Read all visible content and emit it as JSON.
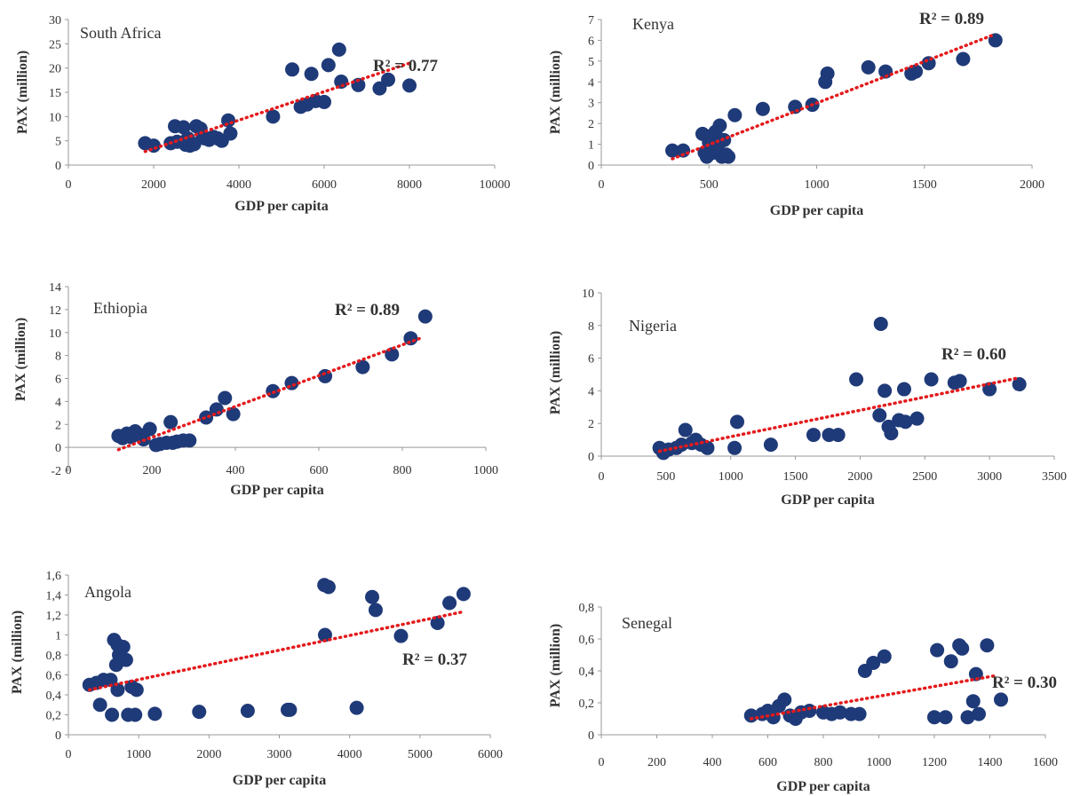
{
  "chart_data": [
    {
      "type": "scatter",
      "country": "South Africa",
      "r2": "R² = 0.77",
      "xlabel": "GDP per capita",
      "ylabel": "PAX (million)",
      "xlim": [
        0,
        10000
      ],
      "ylim": [
        0,
        30
      ],
      "xticks": [
        "0",
        "2000",
        "4000",
        "6000",
        "8000",
        "10000"
      ],
      "yticks": [
        "0",
        "5",
        "10",
        "15",
        "20",
        "25",
        "30"
      ],
      "trend": [
        [
          1800,
          2.8
        ],
        [
          8000,
          21
        ]
      ],
      "points": [
        [
          1800,
          4.5
        ],
        [
          2000,
          4
        ],
        [
          2400,
          4.5
        ],
        [
          2500,
          8
        ],
        [
          2550,
          4.8
        ],
        [
          2700,
          7.8
        ],
        [
          2750,
          4.2
        ],
        [
          2800,
          5.5
        ],
        [
          2850,
          4
        ],
        [
          2950,
          4.3
        ],
        [
          3000,
          8
        ],
        [
          3100,
          7.5
        ],
        [
          3150,
          6
        ],
        [
          3200,
          5.5
        ],
        [
          3300,
          5.2
        ],
        [
          3400,
          5.8
        ],
        [
          3500,
          5.5
        ],
        [
          3600,
          5
        ],
        [
          3750,
          9.2
        ],
        [
          3800,
          6.5
        ],
        [
          4800,
          10
        ],
        [
          5250,
          19.7
        ],
        [
          5450,
          12
        ],
        [
          5600,
          12.5
        ],
        [
          5700,
          18.8
        ],
        [
          5800,
          13.2
        ],
        [
          6000,
          13
        ],
        [
          6100,
          20.6
        ],
        [
          6350,
          23.8
        ],
        [
          6400,
          17.2
        ],
        [
          6800,
          16.5
        ],
        [
          7300,
          15.8
        ],
        [
          7500,
          17.6
        ],
        [
          8000,
          16.4
        ]
      ]
    },
    {
      "type": "scatter",
      "country": "Kenya",
      "r2": "R² = 0.89",
      "xlabel": "GDP per capita",
      "ylabel": "PAX (million)",
      "xlim": [
        0,
        2000
      ],
      "ylim": [
        0,
        7
      ],
      "xticks": [
        "0",
        "500",
        "1000",
        "1500",
        "2000"
      ],
      "yticks": [
        "0",
        "1",
        "2",
        "3",
        "4",
        "5",
        "6",
        "7"
      ],
      "trend": [
        [
          330,
          0.3
        ],
        [
          1830,
          6.3
        ]
      ],
      "points": [
        [
          330,
          0.7
        ],
        [
          380,
          0.7
        ],
        [
          470,
          1.5
        ],
        [
          480,
          0.6
        ],
        [
          490,
          0.4
        ],
        [
          500,
          1.1
        ],
        [
          510,
          1.4
        ],
        [
          520,
          0.6
        ],
        [
          530,
          1.6
        ],
        [
          540,
          0.8
        ],
        [
          550,
          1.9
        ],
        [
          560,
          0.4
        ],
        [
          570,
          1.2
        ],
        [
          580,
          0.5
        ],
        [
          590,
          0.4
        ],
        [
          620,
          2.4
        ],
        [
          750,
          2.7
        ],
        [
          900,
          2.8
        ],
        [
          980,
          2.9
        ],
        [
          1040,
          4
        ],
        [
          1050,
          4.4
        ],
        [
          1240,
          4.7
        ],
        [
          1320,
          4.5
        ],
        [
          1440,
          4.4
        ],
        [
          1460,
          4.5
        ],
        [
          1520,
          4.9
        ],
        [
          1680,
          5.1
        ],
        [
          1830,
          6
        ]
      ]
    },
    {
      "type": "scatter",
      "country": "Ethiopia",
      "r2": "R² = 0.89",
      "xlabel": "GDP per capita",
      "ylabel": "PAX (million)",
      "xlim": [
        0,
        1000
      ],
      "ylim": [
        -2,
        14
      ],
      "xticks": [
        "0",
        "200",
        "400",
        "600",
        "800",
        "1000"
      ],
      "yticks": [
        "-2",
        "0",
        "2",
        "4",
        "6",
        "8",
        "10",
        "12",
        "14"
      ],
      "trend": [
        [
          120,
          -0.2
        ],
        [
          850,
          9.6
        ]
      ],
      "points": [
        [
          120,
          1
        ],
        [
          130,
          0.8
        ],
        [
          140,
          1.2
        ],
        [
          150,
          0.9
        ],
        [
          160,
          1.4
        ],
        [
          170,
          1.1
        ],
        [
          180,
          0.7
        ],
        [
          195,
          1.6
        ],
        [
          210,
          0.2
        ],
        [
          220,
          0.3
        ],
        [
          235,
          0.4
        ],
        [
          245,
          2.2
        ],
        [
          250,
          0.4
        ],
        [
          260,
          0.5
        ],
        [
          275,
          0.6
        ],
        [
          290,
          0.6
        ],
        [
          330,
          2.6
        ],
        [
          355,
          3.3
        ],
        [
          375,
          4.3
        ],
        [
          395,
          2.9
        ],
        [
          490,
          4.9
        ],
        [
          535,
          5.6
        ],
        [
          615,
          6.2
        ],
        [
          705,
          7
        ],
        [
          775,
          8.1
        ],
        [
          820,
          9.5
        ],
        [
          855,
          11.4
        ]
      ]
    },
    {
      "type": "scatter",
      "country": "Nigeria",
      "r2": "R² = 0.60",
      "xlabel": "GDP per capita",
      "ylabel": "PAX (million)",
      "xlim": [
        0,
        3500
      ],
      "ylim": [
        0,
        10
      ],
      "xticks": [
        "0",
        "500",
        "1000",
        "1500",
        "2000",
        "2500",
        "3000",
        "3500"
      ],
      "yticks": [
        "0",
        "2",
        "4",
        "6",
        "8",
        "10"
      ],
      "trend": [
        [
          450,
          0.3
        ],
        [
          3230,
          4.8
        ]
      ],
      "points": [
        [
          450,
          0.5
        ],
        [
          480,
          0.2
        ],
        [
          520,
          0.4
        ],
        [
          580,
          0.5
        ],
        [
          620,
          0.7
        ],
        [
          650,
          1.6
        ],
        [
          700,
          0.8
        ],
        [
          730,
          1
        ],
        [
          770,
          0.7
        ],
        [
          820,
          0.5
        ],
        [
          1030,
          0.5
        ],
        [
          1050,
          2.1
        ],
        [
          1310,
          0.7
        ],
        [
          1640,
          1.3
        ],
        [
          1760,
          1.3
        ],
        [
          1830,
          1.3
        ],
        [
          1970,
          4.7
        ],
        [
          2150,
          2.5
        ],
        [
          2160,
          8.1
        ],
        [
          2190,
          4
        ],
        [
          2220,
          1.8
        ],
        [
          2240,
          1.4
        ],
        [
          2300,
          2.2
        ],
        [
          2340,
          4.1
        ],
        [
          2350,
          2.1
        ],
        [
          2440,
          2.3
        ],
        [
          2550,
          4.7
        ],
        [
          2730,
          4.5
        ],
        [
          2770,
          4.6
        ],
        [
          3000,
          4.1
        ],
        [
          3230,
          4.4
        ]
      ]
    },
    {
      "type": "scatter",
      "country": "Angola",
      "r2": "R² = 0.37",
      "xlabel": "GDP per capita",
      "ylabel": "PAX (million)",
      "xlim": [
        0,
        6000
      ],
      "ylim": [
        0,
        1.6
      ],
      "xticks": [
        "0",
        "1000",
        "2000",
        "3000",
        "4000",
        "5000",
        "6000"
      ],
      "yticks": [
        "0",
        "0,2",
        "0,4",
        "0,6",
        "0,8",
        "1",
        "1,2",
        "1,4",
        "1,6"
      ],
      "trend": [
        [
          300,
          0.45
        ],
        [
          5600,
          1.23
        ]
      ],
      "points": [
        [
          300,
          0.5
        ],
        [
          400,
          0.52
        ],
        [
          450,
          0.3
        ],
        [
          500,
          0.55
        ],
        [
          600,
          0.55
        ],
        [
          620,
          0.2
        ],
        [
          650,
          0.95
        ],
        [
          680,
          0.7
        ],
        [
          700,
          0.45
        ],
        [
          700,
          0.9
        ],
        [
          720,
          0.8
        ],
        [
          780,
          0.88
        ],
        [
          820,
          0.75
        ],
        [
          850,
          0.2
        ],
        [
          900,
          0.48
        ],
        [
          950,
          0.2
        ],
        [
          970,
          0.45
        ],
        [
          1230,
          0.21
        ],
        [
          1860,
          0.23
        ],
        [
          2550,
          0.24
        ],
        [
          3120,
          0.25
        ],
        [
          3150,
          0.25
        ],
        [
          3640,
          1.5
        ],
        [
          3650,
          1
        ],
        [
          3700,
          1.48
        ],
        [
          4100,
          0.27
        ],
        [
          4320,
          1.38
        ],
        [
          4370,
          1.25
        ],
        [
          4730,
          0.99
        ],
        [
          5250,
          1.12
        ],
        [
          5420,
          1.32
        ],
        [
          5620,
          1.41
        ]
      ]
    },
    {
      "type": "scatter",
      "country": "Senegal",
      "r2": "R² = 0.30",
      "xlabel": "GDP per capita",
      "ylabel": "PAX (million)",
      "xlim": [
        0,
        1600
      ],
      "ylim": [
        0,
        0.8
      ],
      "xticks": [
        "0",
        "200",
        "400",
        "600",
        "800",
        "1000",
        "1200",
        "1400",
        "1600"
      ],
      "yticks": [
        "0",
        "0,2",
        "0,4",
        "0,6",
        "0,8"
      ],
      "trend": [
        [
          540,
          0.1
        ],
        [
          1420,
          0.37
        ]
      ],
      "points": [
        [
          540,
          0.12
        ],
        [
          580,
          0.13
        ],
        [
          600,
          0.15
        ],
        [
          620,
          0.11
        ],
        [
          640,
          0.18
        ],
        [
          660,
          0.22
        ],
        [
          680,
          0.12
        ],
        [
          700,
          0.1
        ],
        [
          720,
          0.14
        ],
        [
          750,
          0.15
        ],
        [
          800,
          0.14
        ],
        [
          830,
          0.13
        ],
        [
          860,
          0.14
        ],
        [
          900,
          0.13
        ],
        [
          930,
          0.13
        ],
        [
          950,
          0.4
        ],
        [
          980,
          0.45
        ],
        [
          1020,
          0.49
        ],
        [
          1200,
          0.11
        ],
        [
          1210,
          0.53
        ],
        [
          1240,
          0.11
        ],
        [
          1260,
          0.46
        ],
        [
          1290,
          0.56
        ],
        [
          1300,
          0.54
        ],
        [
          1320,
          0.11
        ],
        [
          1340,
          0.21
        ],
        [
          1350,
          0.38
        ],
        [
          1360,
          0.13
        ],
        [
          1390,
          0.56
        ],
        [
          1440,
          0.22
        ]
      ]
    }
  ]
}
